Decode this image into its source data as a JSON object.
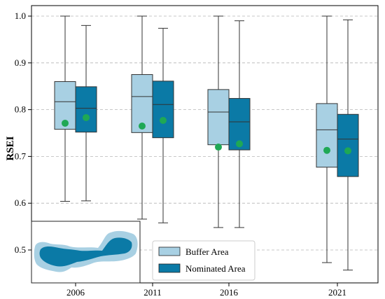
{
  "chart_data": {
    "type": "box",
    "title": "",
    "xlabel": "",
    "ylabel": "RSEI",
    "ylim": [
      0.45,
      1.03
    ],
    "yticks": [
      0.5,
      0.6,
      0.7,
      0.8,
      0.9,
      1.0
    ],
    "ytick_labels": [
      "0.5",
      "0.6",
      "0.7",
      "0.8",
      "0.9",
      "1.0"
    ],
    "categories": [
      "2006",
      "2011",
      "2016",
      "2021"
    ],
    "grid": "y-dashed",
    "legend_placement": "bottom-center",
    "mean_marker_color": "#1fa855",
    "series": [
      {
        "name": "Buffer Area",
        "color": "#a8d0e3",
        "boxes": [
          {
            "min": 0.604,
            "q1": 0.758,
            "median": 0.817,
            "q3": 0.86,
            "max": 1.0,
            "mean": 0.771
          },
          {
            "min": 0.566,
            "q1": 0.751,
            "median": 0.828,
            "q3": 0.875,
            "max": 1.0,
            "mean": 0.765
          },
          {
            "min": 0.548,
            "q1": 0.725,
            "median": 0.795,
            "q3": 0.843,
            "max": 1.0,
            "mean": 0.72
          },
          {
            "min": 0.473,
            "q1": 0.677,
            "median": 0.757,
            "q3": 0.813,
            "max": 1.0,
            "mean": 0.713
          }
        ]
      },
      {
        "name": "Nominated Area",
        "color": "#0b7aa6",
        "boxes": [
          {
            "min": 0.605,
            "q1": 0.752,
            "median": 0.803,
            "q3": 0.849,
            "max": 0.98,
            "mean": 0.783
          },
          {
            "min": 0.558,
            "q1": 0.74,
            "median": 0.811,
            "q3": 0.861,
            "max": 0.974,
            "mean": 0.777
          },
          {
            "min": 0.548,
            "q1": 0.714,
            "median": 0.774,
            "q3": 0.824,
            "max": 0.99,
            "mean": 0.727
          },
          {
            "min": 0.457,
            "q1": 0.657,
            "median": 0.737,
            "q3": 0.79,
            "max": 0.992,
            "mean": 0.712
          }
        ]
      }
    ],
    "inset_map": {
      "outer_color": "#a8d0e3",
      "inner_color": "#0b7aa6"
    }
  }
}
